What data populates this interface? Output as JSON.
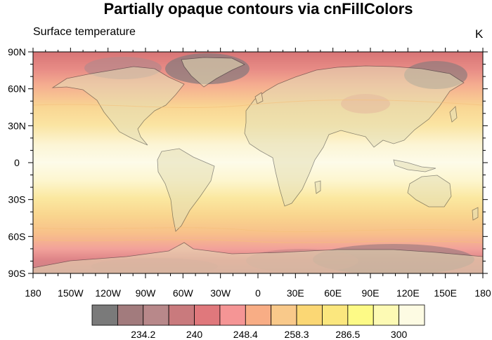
{
  "header": {
    "title": "Partially opaque contours via cnFillColors",
    "subtitle": "Surface temperature",
    "units": "K"
  },
  "axes": {
    "lon_labels": [
      "180",
      "150W",
      "120W",
      "90W",
      "60W",
      "30W",
      "0",
      "30E",
      "60E",
      "90E",
      "120E",
      "150E",
      "180"
    ],
    "lat_labels": [
      "90N",
      "60N",
      "30N",
      "0",
      "30S",
      "60S",
      "90S"
    ]
  },
  "colorbar": {
    "colors": [
      "#7a7a7a",
      "#a27b7d",
      "#b8888a",
      "#c97a7d",
      "#e0787c",
      "#f59595",
      "#f8ad85",
      "#f9c98a",
      "#fbd774",
      "#fbe77e",
      "#fdfa86",
      "#fdfab4",
      "#fdfbe3"
    ],
    "labels": [
      "234.2",
      "240",
      "248.4",
      "258.3",
      "286.5",
      "300"
    ]
  },
  "map": {
    "projection": "cylindrical-equidistant",
    "lon_range": [
      -180,
      180
    ],
    "lat_range": [
      -90,
      90
    ],
    "opacity": 0.6
  }
}
